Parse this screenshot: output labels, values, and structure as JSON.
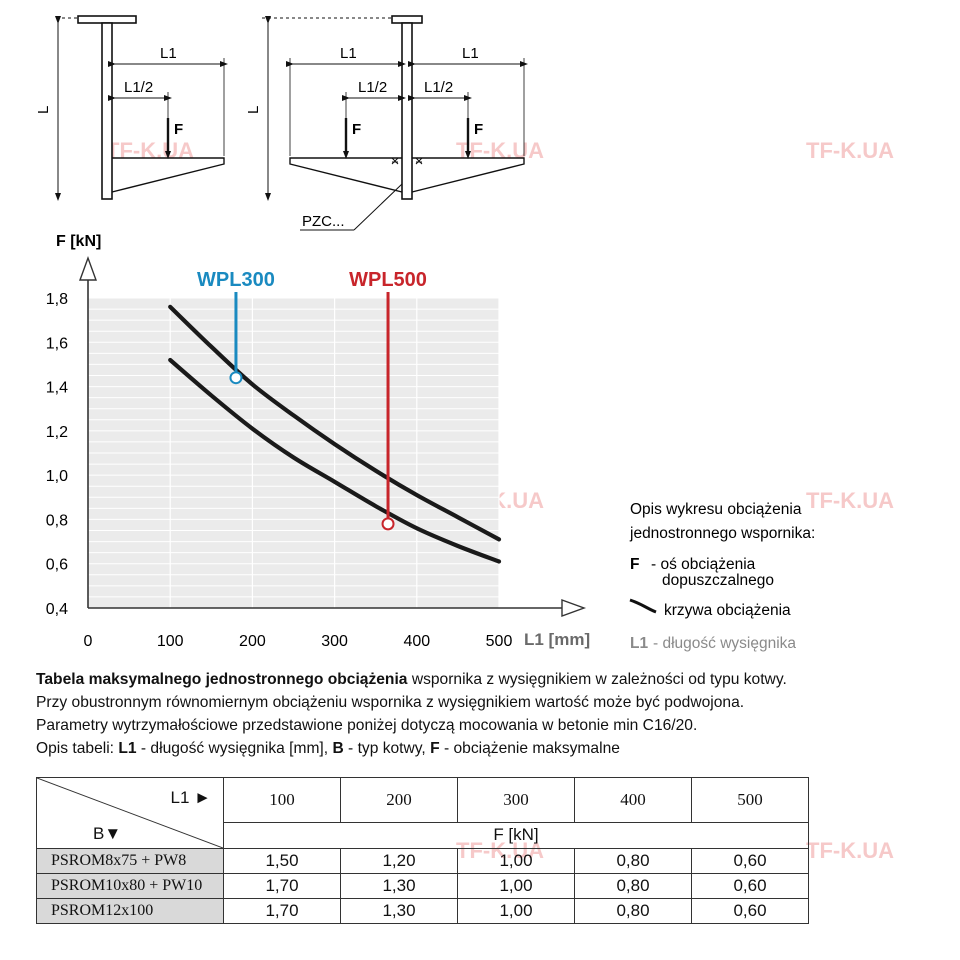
{
  "watermark": "TF-K.UA",
  "diagram": {
    "label_L": "L",
    "label_L1": "L1",
    "label_L1_half": "L1/2",
    "label_F": "F",
    "label_pzc": "PZC..."
  },
  "chart_data": {
    "type": "line",
    "xlabel": "L1 [mm]",
    "ylabel": "F [kN]",
    "xlim": [
      0,
      500
    ],
    "ylim": [
      0.4,
      1.8
    ],
    "x_ticks": [
      "0",
      "100",
      "200",
      "300",
      "400",
      "500"
    ],
    "y_ticks": [
      "0,4",
      "0,6",
      "0,8",
      "1,0",
      "1,2",
      "1,4",
      "1,6",
      "1,8"
    ],
    "grid": true,
    "series": [
      {
        "name": "",
        "x": [
          100,
          150,
          200,
          250,
          300,
          350,
          400,
          450,
          500
        ],
        "y": [
          1.76,
          1.58,
          1.41,
          1.27,
          1.14,
          1.02,
          0.91,
          0.81,
          0.71
        ]
      },
      {
        "name": "",
        "x": [
          100,
          150,
          200,
          250,
          300,
          350,
          400,
          450,
          500
        ],
        "y": [
          1.52,
          1.36,
          1.21,
          1.08,
          0.97,
          0.86,
          0.76,
          0.68,
          0.61
        ]
      }
    ],
    "markers": [
      {
        "label": "WPL300",
        "color": "#1a8ac0",
        "x": 180,
        "y": 1.44
      },
      {
        "label": "WPL500",
        "color": "#c8252b",
        "x": 365,
        "y": 0.78
      }
    ]
  },
  "legend": {
    "title_line1": "Opis wykresu obciążenia",
    "title_line2": "jednostronnego wspornika:",
    "f_key": "F",
    "f_desc_line1": "- oś obciążenia",
    "f_desc_line2": "dopuszczalnego",
    "curve_desc": "krzywa obciążenia",
    "l1_key": "L1",
    "l1_desc": "- długość wysięgnika"
  },
  "description": {
    "line1_bold": "Tabela maksymalnego jednostronnego obciążenia",
    "line1_rest": "wspornika z wysięgnikiem w zależności od typu kotwy.",
    "line2": "Przy obustronnym równomiernym obciążeniu wspornika z wysięgnikiem wartość może być podwojona.",
    "line3": "Parametry wytrzymałościowe przedstawione poniżej dotyczą mocowania w betonie min C16/20.",
    "line4_prefix": "Opis tabeli:",
    "l1_key": "L1",
    "l1_text": "- długość wysięgnika [mm],",
    "b_key": "B",
    "b_text": "- typ kotwy,",
    "f_key": "F",
    "f_text": "- obciążenie maksymalne"
  },
  "table": {
    "corner_l1": "L1 ►",
    "corner_b": "B▼",
    "columns": [
      "100",
      "200",
      "300",
      "400",
      "500"
    ],
    "unit_row": "F [kN]",
    "rows": [
      {
        "anchor": "PSROM8x75 + PW8",
        "values": [
          "1,50",
          "1,20",
          "1,00",
          "0,80",
          "0,60"
        ]
      },
      {
        "anchor": "PSROM10x80 + PW10",
        "values": [
          "1,70",
          "1,30",
          "1,00",
          "0,80",
          "0,60"
        ]
      },
      {
        "anchor": "PSROM12x100",
        "values": [
          "1,70",
          "1,30",
          "1,00",
          "0,80",
          "0,60"
        ]
      }
    ]
  }
}
